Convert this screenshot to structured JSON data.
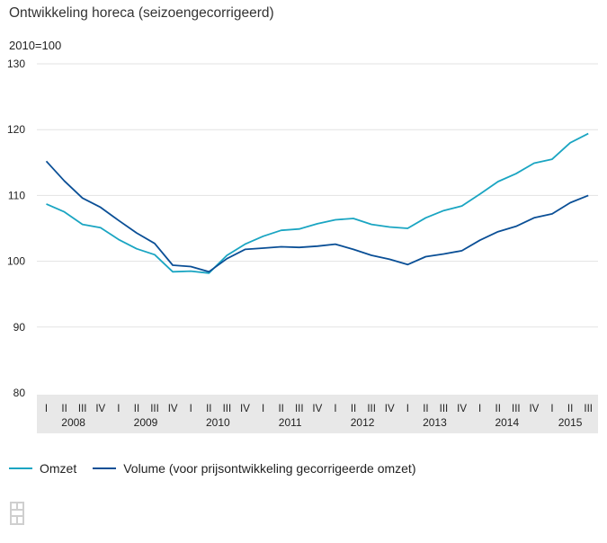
{
  "title": "Ontwikkeling horeca (seizoengecorrigeerd)",
  "unit_label": "2010=100",
  "colors": {
    "omzet": "#1aa5c2",
    "volume": "#0a4f96",
    "grid": "#e3e3e3",
    "axis_band": "#e8e8e8"
  },
  "legend": [
    {
      "key": "omzet",
      "label": "Omzet"
    },
    {
      "key": "volume",
      "label": "Volume (voor prijsontwikkeling gecorrigeerde omzet)"
    }
  ],
  "logo_icon": "cbs-logo-icon",
  "chart_data": {
    "type": "line",
    "ylim": [
      80,
      130
    ],
    "yticks": [
      80,
      90,
      100,
      110,
      120,
      130
    ],
    "quarters": [
      "I",
      "II",
      "III",
      "IV",
      "I",
      "II",
      "III",
      "IV",
      "I",
      "II",
      "III",
      "IV",
      "I",
      "II",
      "III",
      "IV",
      "I",
      "II",
      "III",
      "IV",
      "I",
      "II",
      "III",
      "IV",
      "I",
      "II",
      "III",
      "IV",
      "I",
      "II",
      "III"
    ],
    "years": [
      {
        "label": "2008",
        "start": 0,
        "count": 4
      },
      {
        "label": "2009",
        "start": 4,
        "count": 4
      },
      {
        "label": "2010",
        "start": 8,
        "count": 4
      },
      {
        "label": "2011",
        "start": 12,
        "count": 4
      },
      {
        "label": "2012",
        "start": 16,
        "count": 4
      },
      {
        "label": "2013",
        "start": 20,
        "count": 4
      },
      {
        "label": "2014",
        "start": 24,
        "count": 4
      },
      {
        "label": "2015",
        "start": 28,
        "count": 3
      }
    ],
    "series": [
      {
        "name": "Omzet",
        "key": "omzet",
        "values": [
          108.7,
          107.5,
          105.6,
          105.1,
          103.3,
          101.9,
          101.0,
          98.4,
          98.5,
          98.2,
          100.9,
          102.6,
          103.8,
          104.7,
          104.9,
          105.7,
          106.3,
          106.5,
          105.6,
          105.2,
          105.0,
          106.6,
          107.7,
          108.4,
          110.2,
          112.1,
          113.3,
          114.9,
          115.5,
          118.0,
          119.4
        ]
      },
      {
        "name": "Volume (voor prijsontwikkeling gecorrigeerde omzet)",
        "key": "volume",
        "values": [
          115.2,
          112.2,
          109.6,
          108.2,
          106.2,
          104.3,
          102.7,
          99.4,
          99.2,
          98.4,
          100.4,
          101.8,
          102.0,
          102.2,
          102.1,
          102.3,
          102.6,
          101.8,
          100.9,
          100.3,
          99.5,
          100.7,
          101.1,
          101.6,
          103.2,
          104.5,
          105.3,
          106.6,
          107.2,
          108.9,
          110.0
        ]
      }
    ]
  }
}
